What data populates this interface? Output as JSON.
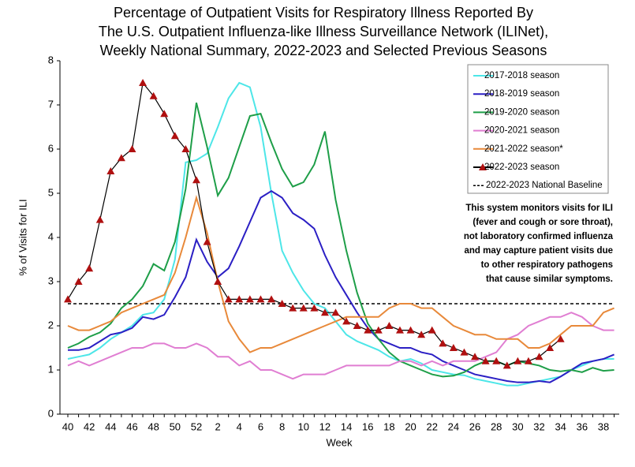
{
  "chart_data": {
    "type": "line",
    "title": [
      "Percentage of Outpatient Visits for Respiratory Illness Reported By",
      "The U.S. Outpatient Influenza-like Illness Surveillance Network (ILINet),",
      "Weekly National Summary, 2022-2023 and Selected Previous Seasons"
    ],
    "x_label": "Week",
    "y_label": "% of Visits for ILI",
    "categories": [
      40,
      null,
      42,
      null,
      44,
      null,
      46,
      null,
      48,
      null,
      50,
      null,
      52,
      null,
      2,
      null,
      4,
      null,
      6,
      null,
      8,
      null,
      10,
      null,
      12,
      null,
      14,
      null,
      16,
      null,
      18,
      null,
      20,
      null,
      22,
      null,
      24,
      null,
      26,
      null,
      28,
      null,
      30,
      null,
      32,
      null,
      34,
      null,
      36,
      null,
      38,
      null
    ],
    "ylim": [
      0,
      8
    ],
    "yticks": [
      0,
      1,
      2,
      3,
      4,
      5,
      6,
      7,
      8
    ],
    "series": [
      {
        "name": "2017-2018 season",
        "color": "#4de6e8",
        "values": [
          1.25,
          1.3,
          1.35,
          1.5,
          1.7,
          1.85,
          2.0,
          2.25,
          2.3,
          2.6,
          3.5,
          5.7,
          5.75,
          5.9,
          6.5,
          7.15,
          7.5,
          7.4,
          6.5,
          5.0,
          3.7,
          3.2,
          2.8,
          2.5,
          2.4,
          2.1,
          1.8,
          1.65,
          1.55,
          1.45,
          1.3,
          1.2,
          1.25,
          1.15,
          1.0,
          0.95,
          0.9,
          0.88,
          0.8,
          0.75,
          0.7,
          0.65,
          0.65,
          0.7,
          0.75,
          0.8,
          0.85,
          1.0,
          1.1,
          1.2,
          1.25,
          1.25
        ]
      },
      {
        "name": "2018-2019 season",
        "color": "#2b1fc4",
        "values": [
          1.45,
          1.45,
          1.5,
          1.65,
          1.8,
          1.85,
          1.95,
          2.2,
          2.15,
          2.25,
          2.65,
          3.1,
          3.95,
          3.45,
          3.1,
          3.3,
          3.8,
          4.35,
          4.9,
          5.05,
          4.9,
          4.55,
          4.4,
          4.2,
          3.6,
          3.1,
          2.7,
          2.3,
          1.95,
          1.7,
          1.6,
          1.5,
          1.5,
          1.4,
          1.35,
          1.2,
          1.1,
          1.0,
          0.9,
          0.85,
          0.8,
          0.75,
          0.72,
          0.72,
          0.75,
          0.72,
          0.85,
          1.0,
          1.15,
          1.2,
          1.25,
          1.35
        ]
      },
      {
        "name": "2019-2020 season",
        "color": "#1e9e48",
        "values": [
          1.5,
          1.6,
          1.75,
          1.85,
          2.05,
          2.4,
          2.6,
          2.9,
          3.4,
          3.25,
          3.9,
          5.1,
          7.05,
          6.05,
          4.95,
          5.35,
          6.05,
          6.75,
          6.8,
          6.15,
          5.55,
          5.15,
          5.25,
          5.65,
          6.4,
          4.85,
          3.7,
          2.75,
          2.05,
          1.7,
          1.4,
          1.2,
          1.1,
          1.0,
          0.9,
          0.85,
          0.87,
          0.95,
          1.1,
          1.2,
          1.2,
          1.1,
          1.2,
          1.15,
          1.1,
          1.0,
          0.97,
          1.0,
          0.95,
          1.05,
          0.98,
          1.0
        ]
      },
      {
        "name": "2020-2021 season",
        "color": "#e07ed2",
        "values": [
          1.1,
          1.2,
          1.1,
          1.2,
          1.3,
          1.4,
          1.5,
          1.5,
          1.6,
          1.6,
          1.5,
          1.5,
          1.6,
          1.5,
          1.3,
          1.3,
          1.1,
          1.2,
          1.0,
          1.0,
          0.9,
          0.8,
          0.9,
          0.9,
          0.9,
          1.0,
          1.1,
          1.1,
          1.1,
          1.1,
          1.1,
          1.2,
          1.2,
          1.1,
          1.2,
          1.1,
          1.2,
          1.2,
          1.2,
          1.3,
          1.4,
          1.7,
          1.8,
          2.0,
          2.1,
          2.2,
          2.2,
          2.3,
          2.2,
          2.0,
          1.9,
          1.9
        ]
      },
      {
        "name": "2021-2022 season*",
        "color": "#e8893a",
        "values": [
          2.0,
          1.9,
          1.9,
          2.0,
          2.1,
          2.3,
          2.4,
          2.5,
          2.6,
          2.7,
          3.2,
          4.0,
          4.9,
          4.1,
          3.0,
          2.1,
          1.7,
          1.4,
          1.5,
          1.5,
          1.6,
          1.7,
          1.8,
          1.9,
          2.0,
          2.1,
          2.2,
          2.2,
          2.2,
          2.2,
          2.4,
          2.5,
          2.5,
          2.4,
          2.4,
          2.2,
          2.0,
          1.9,
          1.8,
          1.8,
          1.7,
          1.7,
          1.7,
          1.5,
          1.5,
          1.6,
          1.8,
          2.0,
          2.0,
          2.0,
          2.3,
          2.4
        ]
      },
      {
        "name": "2022-2023 season",
        "color": "#000000",
        "marker_color": "#b01010",
        "values": [
          2.6,
          3.0,
          3.3,
          4.4,
          5.5,
          5.8,
          6.0,
          7.5,
          7.2,
          6.8,
          6.3,
          6.0,
          5.3,
          3.9,
          3.0,
          2.6,
          2.6,
          2.6,
          2.6,
          2.6,
          2.5,
          2.4,
          2.4,
          2.4,
          2.3,
          2.3,
          2.1,
          2.0,
          1.9,
          1.9,
          2.0,
          1.9,
          1.9,
          1.8,
          1.9,
          1.6,
          1.5,
          1.4,
          1.3,
          1.2,
          1.2,
          1.1,
          1.2,
          1.2,
          1.3,
          1.5,
          1.7,
          null,
          null,
          null,
          null,
          null
        ]
      }
    ],
    "baseline": {
      "name": "2022-2023 National Baseline",
      "value": 2.5,
      "color": "#000000"
    },
    "annotation": [
      "This system monitors visits for ILI",
      "(fever and cough or sore throat),",
      "not laboratory confirmed influenza",
      "and may capture patient visits due",
      "to other respiratory pathogens",
      "that cause similar symptoms."
    ]
  }
}
